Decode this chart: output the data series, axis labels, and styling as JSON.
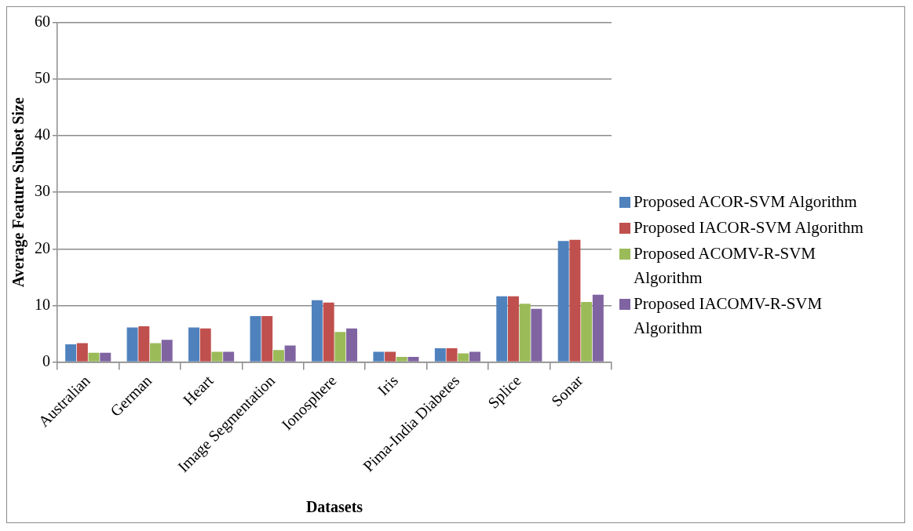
{
  "chart_data": {
    "type": "bar",
    "xlabel": "Datasets",
    "ylabel": "Average Feature Subset Size",
    "categories": [
      "Australian",
      "German",
      "Heart",
      "Image Segmentation",
      "Ionosphere",
      "Iris",
      "Pima-India Diabetes",
      "Splice",
      "Sonar"
    ],
    "series": [
      {
        "name": "Proposed ACOR-SVM Algorithm",
        "color": "#4f81bd",
        "values": [
          3.1,
          6.1,
          6.1,
          8.1,
          10.9,
          1.8,
          2.4,
          11.6,
          21.4
        ]
      },
      {
        "name": "Proposed IACOR-SVM Algorithm",
        "color": "#c0504d",
        "values": [
          3.3,
          6.3,
          5.9,
          8.1,
          10.5,
          1.8,
          2.4,
          11.6,
          21.6
        ]
      },
      {
        "name": "Proposed ACOMV-R-SVM Algorithm",
        "color": "#9bbb59",
        "values": [
          1.6,
          3.3,
          1.8,
          2.1,
          5.3,
          0.9,
          1.5,
          10.3,
          10.6
        ]
      },
      {
        "name": "Proposed IACOMV-R-SVM Algorithm",
        "color": "#8064a2",
        "values": [
          1.6,
          3.9,
          1.8,
          2.9,
          5.9,
          0.9,
          1.8,
          9.4,
          11.9
        ]
      }
    ],
    "ylim": [
      0,
      60
    ],
    "yticks": [
      0,
      10,
      20,
      30,
      40,
      50,
      60
    ],
    "grid": "y",
    "legend": "right"
  }
}
